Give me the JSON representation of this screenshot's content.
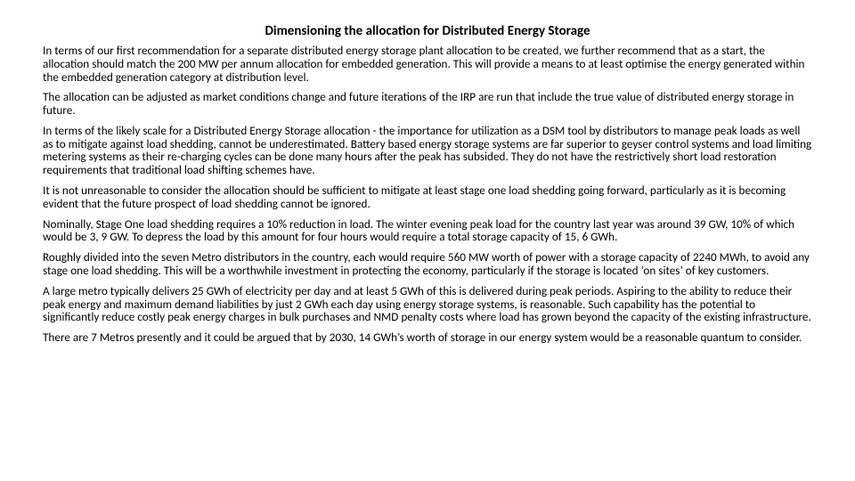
{
  "title": "Dimensioning the allocation for Distributed Energy Storage",
  "paragraphs": [
    "In terms of our first recommendation for a separate distributed energy storage plant allocation to be created, we further recommend that as a start, the allocation should match the 200 MW per annum allocation for embedded generation. This will provide a means to at least optimise the energy generated within the embedded generation category at distribution level.",
    "The allocation can be adjusted as market conditions change and future iterations of the IRP are run that include the true value of distributed energy storage in future.",
    "In terms of the likely scale for a Distributed Energy Storage allocation - the importance for utilization as a DSM tool by distributors to manage peak loads as well as to mitigate against load shedding, cannot be underestimated. Battery based energy storage systems are far superior to geyser control systems and load limiting metering systems as their re-charging cycles can be done many hours after the peak has subsided. They do not have the restrictively short load restoration requirements that traditional load shifting schemes have.",
    "It is not unreasonable to consider the allocation should be sufficient to mitigate at least stage one load shedding going forward, particularly as it is becoming evident that the future prospect of load shedding cannot be ignored.",
    "Nominally, Stage One load shedding requires a 10% reduction in load. The winter evening peak load for the country last year was around 39 GW, 10% of which would be 3, 9 GW. To depress the load by this amount for four hours would require a total storage capacity of 15, 6 GWh.",
    "Roughly divided into the seven Metro distributors in the country, each would require 560 MW worth of power with a storage capacity of 2240 MWh, to avoid any stage one load shedding. This will be a worthwhile investment in protecting the economy, particularly if the storage is located ‘on sites’ of key customers.",
    "A large metro typically delivers 25 GWh of electricity per day and at least 5 GWh of this is delivered during peak periods. Aspiring to the ability to reduce their peak energy and maximum demand liabilities by just 2 GWh each day using energy storage systems, is reasonable. Such capability has the potential to significantly reduce costly peak energy charges in bulk purchases and NMD penalty costs where load has grown beyond the capacity of the existing infrastructure.",
    "There are 7 Metros presently and it could be argued that by 2030, 14 GWh’s worth of storage in our energy system would be a reasonable quantum to consider."
  ]
}
